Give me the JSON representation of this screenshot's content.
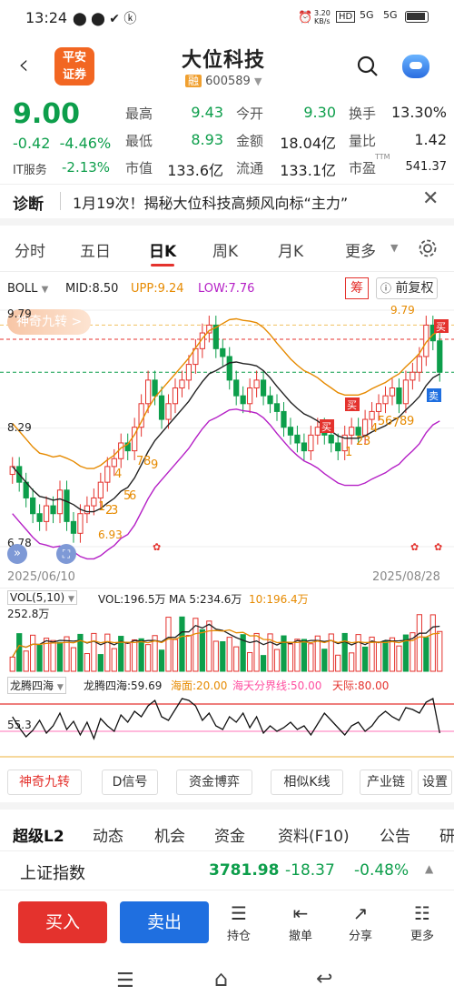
{
  "status_bar": {
    "time": "13:24",
    "speed": "3.20",
    "speed_unit": "KB/s",
    "net1": "5G",
    "net2": "5G",
    "hd": "HD"
  },
  "header": {
    "broker_logo_line1": "平安",
    "broker_logo_line2": "证券",
    "stock_name": "大位科技",
    "rong_badge": "融",
    "stock_code": "600589"
  },
  "quote": {
    "price": "9.00",
    "change": "-0.42",
    "change_pct": "-4.46%",
    "sector_label": "IT服务",
    "sector_change": "-2.13%",
    "fields": [
      {
        "label": "最高",
        "value": "9.43"
      },
      {
        "label": "今开",
        "value": "9.30"
      },
      {
        "label": "换手",
        "value": "13.30%"
      },
      {
        "label": "最低",
        "value": "8.93"
      },
      {
        "label": "金额",
        "value": "18.04亿"
      },
      {
        "label": "量比",
        "value": "1.42"
      },
      {
        "label": "市值",
        "value": "133.6亿"
      },
      {
        "label": "流通",
        "value": "133.1亿"
      },
      {
        "label": "市盈",
        "value": "541.37",
        "sup": "TTM"
      }
    ]
  },
  "diagnosis": {
    "label": "诊断",
    "text": "1月19次！揭秘大位科技高频风向标“主力”"
  },
  "period_tabs": [
    "分时",
    "五日",
    "日K",
    "周K",
    "月K",
    "更多"
  ],
  "active_tab": "日K",
  "chart_header": {
    "indicator": "BOLL",
    "mid": "MID:8.50",
    "upp": "UPP:9.24",
    "low": "LOW:7.76",
    "chou": "筹",
    "fuquan": "前复权"
  },
  "chart_labels": {
    "magic_nine": "神奇九转 >",
    "y_high": "9.79",
    "y_mid": "8.29",
    "y_low": "6.78",
    "date_start": "2025/06/10",
    "date_end": "2025/08/28",
    "high_mark": "9.79",
    "low_mark": "6.93",
    "buy": "买",
    "sell": "卖"
  },
  "chart_data": [
    {
      "type": "candlestick",
      "title": "BOLL",
      "x_range": [
        "2025/06/10",
        "2025/08/28"
      ],
      "ylim": [
        6.78,
        9.79
      ],
      "series": [
        {
          "name": "MID",
          "last": 8.5
        },
        {
          "name": "UPP",
          "last": 9.24
        },
        {
          "name": "LOW",
          "last": 7.76
        }
      ],
      "annotations": [
        "9.79",
        "6.93",
        "1",
        "2",
        "3",
        "4",
        "5",
        "6",
        "7",
        "8",
        "9",
        "买",
        "卖"
      ]
    },
    {
      "type": "bar",
      "title": "VOL(5,10)",
      "series": [
        {
          "name": "VOL",
          "last": "196.5万"
        },
        {
          "name": "MA5",
          "last": "234.6万"
        },
        {
          "name": "MA10",
          "last": "196.4万"
        }
      ],
      "ytick": "252.8万"
    },
    {
      "type": "line",
      "title": "龙腾四海",
      "series": [
        {
          "name": "龙腾四海",
          "last": 59.69
        }
      ],
      "levels": [
        {
          "name": "海面",
          "value": 20.0
        },
        {
          "name": "海天分界线",
          "value": 50.0
        },
        {
          "name": "天际",
          "value": 80.0
        }
      ],
      "ytick": "55.3"
    }
  ],
  "vol_header": {
    "title": "VOL(5,10)",
    "vol": "VOL:196.5万",
    "ma5": "MA 5:234.6万",
    "ma10": "10:196.4万",
    "ytick": "252.8万"
  },
  "ltsh_header": {
    "title": "龙腾四海",
    "value": "龙腾四海:59.69",
    "sea": "海面:20.00",
    "line": "海天分界线:50.00",
    "sky": "天际:80.00",
    "ytick": "55.3"
  },
  "func_buttons": [
    "神奇九转",
    "D信号",
    "资金博弈",
    "相似K线",
    "产业链",
    "设置"
  ],
  "sub_tabs": [
    "超级L2",
    "动态",
    "机会",
    "资金",
    "资料(F10)",
    "公告",
    "研"
  ],
  "index_bar": {
    "name": "上证指数",
    "value": "3781.98",
    "change": "-18.37",
    "pct": "-0.48%"
  },
  "actions": {
    "buy": "买入",
    "sell": "卖出",
    "hold": "持仓",
    "cancel": "撤单",
    "share": "分享",
    "more": "更多"
  },
  "colors": {
    "up": "#e4322d",
    "down": "#0d9e4b",
    "accent": "#f26622",
    "sell_btn": "#1f6fe0"
  }
}
